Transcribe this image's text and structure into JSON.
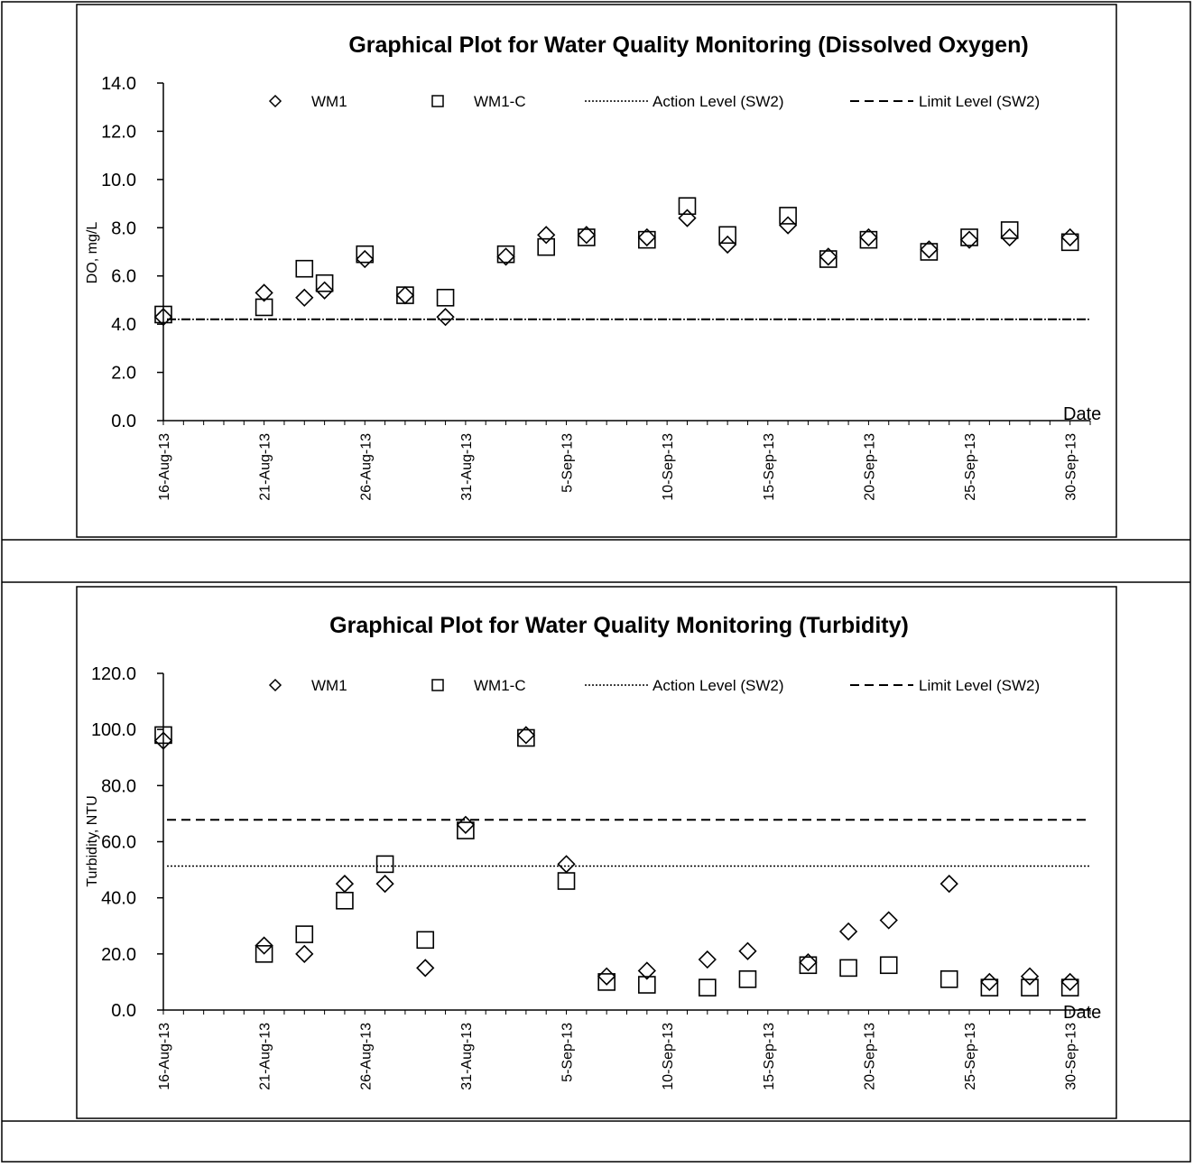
{
  "chart_data": [
    {
      "type": "scatter",
      "title": "Graphical Plot for Water Quality Monitoring (Dissolved Oxygen)",
      "xlabel": "Date",
      "ylabel": "DO, mg/L",
      "xlim": [
        "2013-08-16",
        "2013-10-01"
      ],
      "ylim": [
        0,
        14
      ],
      "yticks": [
        "0.0",
        "2.0",
        "4.0",
        "6.0",
        "8.0",
        "10.0",
        "12.0",
        "14.0"
      ],
      "xticks": [
        "16-Aug-13",
        "21-Aug-13",
        "26-Aug-13",
        "31-Aug-13",
        "5-Sep-13",
        "10-Sep-13",
        "15-Sep-13",
        "20-Sep-13",
        "25-Sep-13",
        "30-Sep-13"
      ],
      "legend_position": "top",
      "grid": false,
      "series": [
        {
          "name": "WM1",
          "marker": "diamond",
          "points": [
            [
              "2013-08-16",
              4.3
            ],
            [
              "2013-08-21",
              5.3
            ],
            [
              "2013-08-23",
              5.1
            ],
            [
              "2013-08-24",
              5.4
            ],
            [
              "2013-08-26",
              6.7
            ],
            [
              "2013-08-28",
              5.2
            ],
            [
              "2013-08-30",
              4.3
            ],
            [
              "2013-09-02",
              6.8
            ],
            [
              "2013-09-04",
              7.7
            ],
            [
              "2013-09-06",
              7.7
            ],
            [
              "2013-09-09",
              7.6
            ],
            [
              "2013-09-11",
              8.4
            ],
            [
              "2013-09-13",
              7.3
            ],
            [
              "2013-09-16",
              8.1
            ],
            [
              "2013-09-18",
              6.8
            ],
            [
              "2013-09-20",
              7.6
            ],
            [
              "2013-09-23",
              7.1
            ],
            [
              "2013-09-25",
              7.5
            ],
            [
              "2013-09-27",
              7.6
            ],
            [
              "2013-09-30",
              7.6
            ]
          ]
        },
        {
          "name": "WM1-C",
          "marker": "square",
          "points": [
            [
              "2013-08-16",
              4.4
            ],
            [
              "2013-08-21",
              4.7
            ],
            [
              "2013-08-23",
              6.3
            ],
            [
              "2013-08-24",
              5.7
            ],
            [
              "2013-08-26",
              6.9
            ],
            [
              "2013-08-28",
              5.2
            ],
            [
              "2013-08-30",
              5.1
            ],
            [
              "2013-09-02",
              6.9
            ],
            [
              "2013-09-04",
              7.2
            ],
            [
              "2013-09-06",
              7.6
            ],
            [
              "2013-09-09",
              7.5
            ],
            [
              "2013-09-11",
              8.9
            ],
            [
              "2013-09-13",
              7.7
            ],
            [
              "2013-09-16",
              8.5
            ],
            [
              "2013-09-18",
              6.7
            ],
            [
              "2013-09-20",
              7.5
            ],
            [
              "2013-09-23",
              7.0
            ],
            [
              "2013-09-25",
              7.6
            ],
            [
              "2013-09-27",
              7.9
            ],
            [
              "2013-09-30",
              7.4
            ]
          ]
        },
        {
          "name": "Action Level (SW2)",
          "style": "dotted",
          "value": 4.2
        },
        {
          "name": "Limit Level (SW2)",
          "style": "dashed",
          "value": 4.2
        }
      ]
    },
    {
      "type": "scatter",
      "title": "Graphical Plot for Water Quality Monitoring (Turbidity)",
      "xlabel": "Date",
      "ylabel": "Turbidity, NTU",
      "xlim": [
        "2013-08-16",
        "2013-10-01"
      ],
      "ylim": [
        0,
        120
      ],
      "yticks": [
        "0.0",
        "20.0",
        "40.0",
        "60.0",
        "80.0",
        "100.0",
        "120.0"
      ],
      "xticks": [
        "16-Aug-13",
        "21-Aug-13",
        "26-Aug-13",
        "31-Aug-13",
        "5-Sep-13",
        "10-Sep-13",
        "15-Sep-13",
        "20-Sep-13",
        "25-Sep-13",
        "30-Sep-13"
      ],
      "legend_position": "top",
      "grid": false,
      "series": [
        {
          "name": "WM1",
          "marker": "diamond",
          "points": [
            [
              "2013-08-16",
              96
            ],
            [
              "2013-08-21",
              23
            ],
            [
              "2013-08-23",
              20
            ],
            [
              "2013-08-25",
              45
            ],
            [
              "2013-08-27",
              45
            ],
            [
              "2013-08-29",
              15
            ],
            [
              "2013-08-31",
              66
            ],
            [
              "2013-09-03",
              98
            ],
            [
              "2013-09-05",
              52
            ],
            [
              "2013-09-07",
              12
            ],
            [
              "2013-09-09",
              14
            ],
            [
              "2013-09-12",
              18
            ],
            [
              "2013-09-14",
              21
            ],
            [
              "2013-09-17",
              17
            ],
            [
              "2013-09-19",
              28
            ],
            [
              "2013-09-21",
              32
            ],
            [
              "2013-09-24",
              45
            ],
            [
              "2013-09-26",
              10
            ],
            [
              "2013-09-28",
              12
            ],
            [
              "2013-09-30",
              10
            ]
          ]
        },
        {
          "name": "WM1-C",
          "marker": "square",
          "points": [
            [
              "2013-08-16",
              98
            ],
            [
              "2013-08-21",
              20
            ],
            [
              "2013-08-23",
              27
            ],
            [
              "2013-08-25",
              39
            ],
            [
              "2013-08-27",
              52
            ],
            [
              "2013-08-29",
              25
            ],
            [
              "2013-08-31",
              64
            ],
            [
              "2013-09-03",
              97
            ],
            [
              "2013-09-05",
              46
            ],
            [
              "2013-09-07",
              10
            ],
            [
              "2013-09-09",
              9
            ],
            [
              "2013-09-12",
              8
            ],
            [
              "2013-09-14",
              11
            ],
            [
              "2013-09-17",
              16
            ],
            [
              "2013-09-19",
              15
            ],
            [
              "2013-09-21",
              16
            ],
            [
              "2013-09-24",
              11
            ],
            [
              "2013-09-26",
              8
            ],
            [
              "2013-09-28",
              8
            ],
            [
              "2013-09-30",
              8
            ]
          ]
        },
        {
          "name": "Action Level (SW2)",
          "style": "dotted",
          "value": 51.3
        },
        {
          "name": "Limit Level (SW2)",
          "style": "dashed",
          "value": 67.8
        }
      ]
    }
  ]
}
